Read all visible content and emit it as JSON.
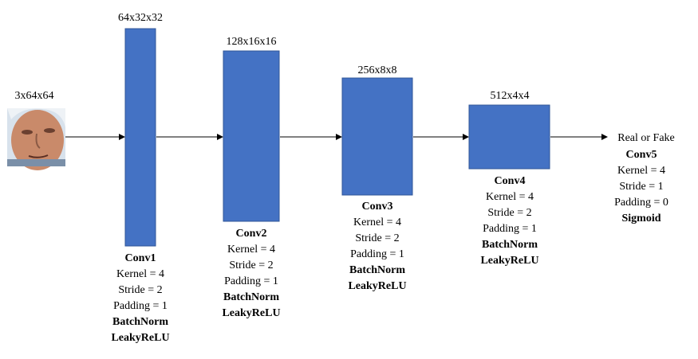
{
  "input": {
    "shape": "3x64x64",
    "face_skin": "#c98a6a",
    "face_bg": "#d8e2ec",
    "face_shadow": "#6b4030"
  },
  "colors": {
    "block": "#4472C4",
    "block_border": "#2F5597",
    "arrow": "#000000"
  },
  "layers": [
    {
      "shape": "64x32x32",
      "name": "Conv1",
      "kernel": "Kernel = 4",
      "stride": "Stride = 2",
      "padding": "Padding = 1",
      "norm": "BatchNorm",
      "activation": "LeakyReLU"
    },
    {
      "shape": "128x16x16",
      "name": "Conv2",
      "kernel": "Kernel = 4",
      "stride": "Stride = 2",
      "padding": "Padding = 1",
      "norm": "BatchNorm",
      "activation": "LeakyReLU"
    },
    {
      "shape": "256x8x8",
      "name": "Conv3",
      "kernel": "Kernel = 4",
      "stride": "Stride = 2",
      "padding": "Padding = 1",
      "norm": "BatchNorm",
      "activation": "LeakyReLU"
    },
    {
      "shape": "512x4x4",
      "name": "Conv4",
      "kernel": "Kernel = 4",
      "stride": "Stride = 2",
      "padding": "Padding = 1",
      "norm": "BatchNorm",
      "activation": "LeakyReLU"
    }
  ],
  "output": {
    "label": "Real or Fake",
    "name": "Conv5",
    "kernel": "Kernel = 4",
    "stride": "Stride = 1",
    "padding": "Padding = 0",
    "activation": "Sigmoid"
  }
}
